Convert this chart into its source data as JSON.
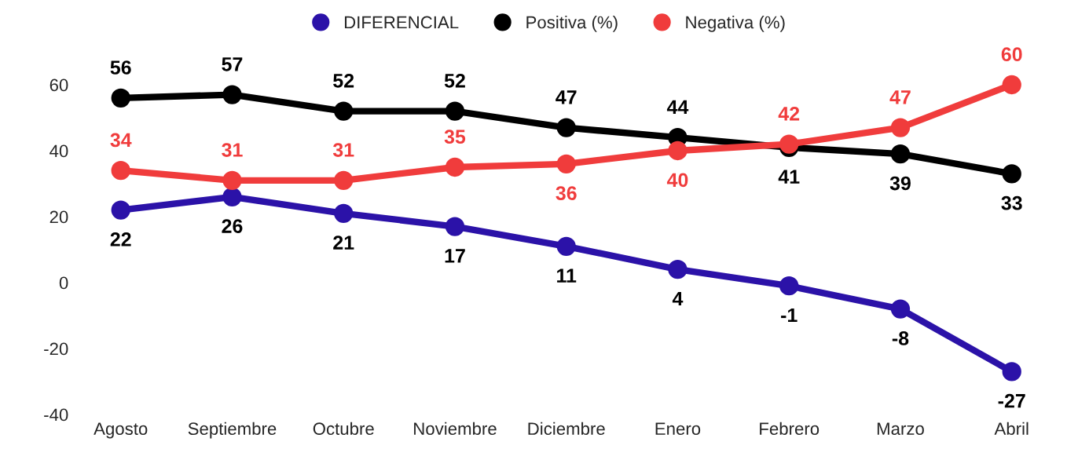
{
  "chart_data": {
    "type": "line",
    "categories": [
      "Agosto",
      "Septiembre",
      "Octubre",
      "Noviembre",
      "Diciembre",
      "Enero",
      "Febrero",
      "Marzo",
      "Abril"
    ],
    "series": [
      {
        "name": "DIFERENCIAL",
        "color": "#2b12a8",
        "values": [
          22,
          26,
          21,
          17,
          11,
          4,
          -1,
          -8,
          -27
        ]
      },
      {
        "name": "Positiva (%)",
        "color": "#000000",
        "values": [
          56,
          57,
          52,
          52,
          47,
          44,
          41,
          39,
          33
        ]
      },
      {
        "name": "Negativa (%)",
        "color": "#f03c3c",
        "values": [
          34,
          31,
          31,
          35,
          36,
          40,
          42,
          47,
          60
        ]
      }
    ],
    "ylim": [
      -40,
      60
    ],
    "yticks": [
      -40,
      -20,
      0,
      20,
      40,
      60
    ],
    "grid": false,
    "legend": "top",
    "marker": "circle",
    "line_style": "solid",
    "data_labels": true
  }
}
